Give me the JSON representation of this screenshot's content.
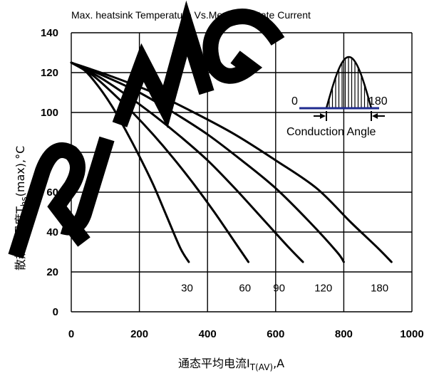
{
  "chart_data": {
    "type": "line",
    "title": "Max. heatsink Temperature Vs.Mean On-state Current",
    "xlabel": {
      "main": "通态平均电流I",
      "sub": "T(AV)",
      "suffix": ",A"
    },
    "ylabel": {
      "main": "散热器温度T",
      "sub": "hs",
      "suffix": "(max),°C"
    },
    "xlim": [
      0,
      1000
    ],
    "ylim": [
      0,
      140
    ],
    "xticks": [
      "0",
      "200",
      "400",
      "600",
      "800",
      "1000"
    ],
    "yticks": [
      "0",
      "20",
      "40",
      "60",
      "80",
      "100",
      "120",
      "140"
    ],
    "grid": true,
    "series": [
      {
        "name": "30",
        "label_at": [
          340,
          12
        ],
        "points": [
          [
            0,
            125
          ],
          [
            40,
            121
          ],
          [
            80,
            113
          ],
          [
            120,
            103
          ],
          [
            160,
            91
          ],
          [
            200,
            78
          ],
          [
            240,
            64
          ],
          [
            280,
            48
          ],
          [
            320,
            32
          ],
          [
            345,
            25
          ]
        ]
      },
      {
        "name": "60",
        "label_at": [
          510,
          12
        ],
        "points": [
          [
            0,
            125
          ],
          [
            60,
            119
          ],
          [
            120,
            110
          ],
          [
            180,
            100
          ],
          [
            240,
            89
          ],
          [
            300,
            77
          ],
          [
            360,
            64
          ],
          [
            420,
            50
          ],
          [
            480,
            35
          ],
          [
            520,
            25
          ]
        ]
      },
      {
        "name": "90",
        "label_at": [
          610,
          12
        ],
        "points": [
          [
            0,
            125
          ],
          [
            80,
            118
          ],
          [
            160,
            109
          ],
          [
            240,
            99
          ],
          [
            320,
            88
          ],
          [
            400,
            76
          ],
          [
            480,
            62
          ],
          [
            560,
            47
          ],
          [
            640,
            32
          ],
          [
            680,
            25
          ]
        ]
      },
      {
        "name": "120",
        "label_at": [
          740,
          12
        ],
        "points": [
          [
            0,
            125
          ],
          [
            100,
            118
          ],
          [
            200,
            110
          ],
          [
            300,
            100
          ],
          [
            400,
            89
          ],
          [
            500,
            76
          ],
          [
            600,
            62
          ],
          [
            700,
            45
          ],
          [
            780,
            30
          ],
          [
            800,
            25
          ]
        ]
      },
      {
        "name": "180",
        "label_at": [
          905,
          12
        ],
        "points": [
          [
            0,
            125
          ],
          [
            120,
            118
          ],
          [
            240,
            110
          ],
          [
            360,
            100
          ],
          [
            480,
            89
          ],
          [
            600,
            76
          ],
          [
            720,
            62
          ],
          [
            820,
            45
          ],
          [
            900,
            32
          ],
          [
            940,
            25
          ]
        ]
      }
    ]
  },
  "inset": {
    "left_label": "0",
    "right_label": "180",
    "caption": "Conduction Angle"
  },
  "watermark": {
    "text_shape": "RJMG",
    "color": "#000000"
  },
  "colors": {
    "baseline": "#1f2b8f",
    "ink": "#000000"
  }
}
